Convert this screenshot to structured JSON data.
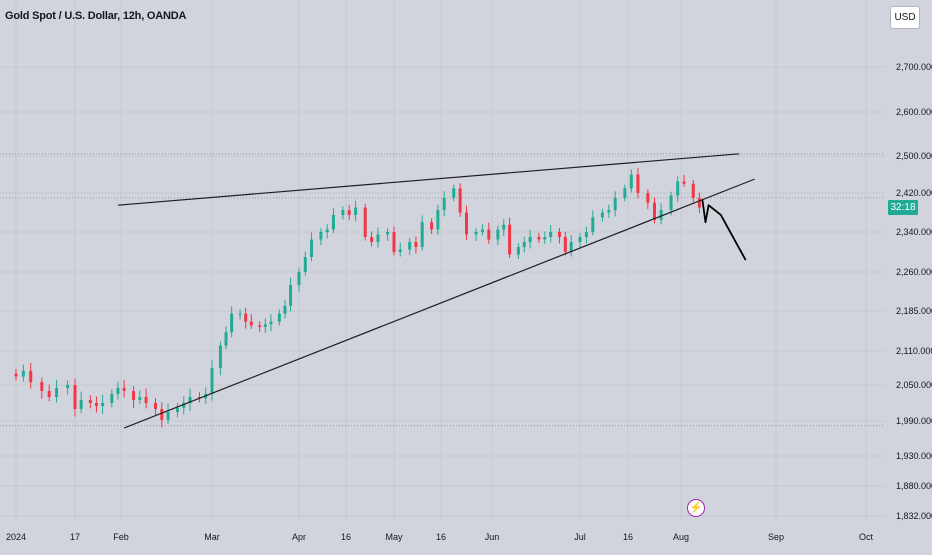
{
  "header": {
    "title": "Gold Spot / U.S. Dollar, 12h, OANDA",
    "currency_label": "USD",
    "countdown_label": "32:18"
  },
  "colors": {
    "background": "#d1d4dc",
    "up": "#22ab94",
    "down": "#f23645",
    "trendline": "#1e1e1e",
    "grid": "#c4c7ce",
    "axis_text": "#131722",
    "price_tag": "#22ab94",
    "alert_icon": "#9c27b0"
  },
  "icons": {
    "alert": "lightning-bolt-icon"
  },
  "chart_data": {
    "type": "candlestick",
    "title": "Gold Spot / U.S. Dollar, 12h, OANDA",
    "xlabel": "",
    "ylabel": "",
    "y_tick_labels": [
      "2,700.000",
      "2,600.000",
      "2,500.000",
      "2,420.000",
      "2,340.000",
      "2,260.000",
      "2,185.000",
      "2,110.000",
      "2,050.000",
      "1,990.000",
      "1,930.000",
      "1,880.000",
      "1,832.000"
    ],
    "x_tick_labels": [
      "2024",
      "17",
      "Feb",
      "Mar",
      "Apr",
      "16",
      "May",
      "16",
      "Jun",
      "Jul",
      "16",
      "Aug",
      "Sep",
      "Oct"
    ],
    "grid": true,
    "price_close_series": [
      [
        "2024-01-01",
        2065
      ],
      [
        "2024-01-03",
        2075
      ],
      [
        "2024-01-05",
        2055
      ],
      [
        "2024-01-08",
        2040
      ],
      [
        "2024-01-10",
        2030
      ],
      [
        "2024-01-12",
        2045
      ],
      [
        "2024-01-15",
        2050
      ],
      [
        "2024-01-17",
        2010
      ],
      [
        "2024-01-19",
        2025
      ],
      [
        "2024-01-22",
        2020
      ],
      [
        "2024-01-24",
        2015
      ],
      [
        "2024-01-26",
        2020
      ],
      [
        "2024-01-29",
        2035
      ],
      [
        "2024-01-31",
        2045
      ],
      [
        "2024-02-02",
        2040
      ],
      [
        "2024-02-05",
        2025
      ],
      [
        "2024-02-07",
        2030
      ],
      [
        "2024-02-09",
        2020
      ],
      [
        "2024-02-12",
        2010
      ],
      [
        "2024-02-14",
        1992
      ],
      [
        "2024-02-16",
        2005
      ],
      [
        "2024-02-19",
        2012
      ],
      [
        "2024-02-21",
        2020
      ],
      [
        "2024-02-23",
        2030
      ],
      [
        "2024-02-26",
        2028
      ],
      [
        "2024-02-28",
        2035
      ],
      [
        "2024-03-01",
        2080
      ],
      [
        "2024-03-04",
        2120
      ],
      [
        "2024-03-06",
        2145
      ],
      [
        "2024-03-08",
        2180
      ],
      [
        "2024-03-11",
        2180
      ],
      [
        "2024-03-13",
        2165
      ],
      [
        "2024-03-15",
        2158
      ],
      [
        "2024-03-18",
        2155
      ],
      [
        "2024-03-20",
        2160
      ],
      [
        "2024-03-22",
        2165
      ],
      [
        "2024-03-25",
        2180
      ],
      [
        "2024-03-27",
        2195
      ],
      [
        "2024-03-29",
        2235
      ],
      [
        "2024-04-01",
        2260
      ],
      [
        "2024-04-03",
        2290
      ],
      [
        "2024-04-05",
        2325
      ],
      [
        "2024-04-08",
        2340
      ],
      [
        "2024-04-10",
        2345
      ],
      [
        "2024-04-12",
        2375
      ],
      [
        "2024-04-15",
        2385
      ],
      [
        "2024-04-17",
        2375
      ],
      [
        "2024-04-19",
        2390
      ],
      [
        "2024-04-22",
        2330
      ],
      [
        "2024-04-24",
        2320
      ],
      [
        "2024-04-26",
        2335
      ],
      [
        "2024-04-29",
        2340
      ],
      [
        "2024-05-01",
        2300
      ],
      [
        "2024-05-03",
        2305
      ],
      [
        "2024-05-06",
        2320
      ],
      [
        "2024-05-08",
        2310
      ],
      [
        "2024-05-10",
        2360
      ],
      [
        "2024-05-13",
        2345
      ],
      [
        "2024-05-15",
        2385
      ],
      [
        "2024-05-17",
        2410
      ],
      [
        "2024-05-20",
        2430
      ],
      [
        "2024-05-22",
        2380
      ],
      [
        "2024-05-24",
        2335
      ],
      [
        "2024-05-27",
        2340
      ],
      [
        "2024-05-29",
        2345
      ],
      [
        "2024-05-31",
        2325
      ],
      [
        "2024-06-03",
        2345
      ],
      [
        "2024-06-05",
        2355
      ],
      [
        "2024-06-07",
        2295
      ],
      [
        "2024-06-10",
        2310
      ],
      [
        "2024-06-12",
        2320
      ],
      [
        "2024-06-14",
        2330
      ],
      [
        "2024-06-17",
        2325
      ],
      [
        "2024-06-19",
        2330
      ],
      [
        "2024-06-21",
        2340
      ],
      [
        "2024-06-24",
        2330
      ],
      [
        "2024-06-26",
        2300
      ],
      [
        "2024-06-28",
        2320
      ],
      [
        "2024-07-01",
        2330
      ],
      [
        "2024-07-03",
        2340
      ],
      [
        "2024-07-05",
        2370
      ],
      [
        "2024-07-08",
        2380
      ],
      [
        "2024-07-10",
        2385
      ],
      [
        "2024-07-12",
        2410
      ],
      [
        "2024-07-15",
        2430
      ],
      [
        "2024-07-17",
        2460
      ],
      [
        "2024-07-19",
        2420
      ],
      [
        "2024-07-22",
        2400
      ],
      [
        "2024-07-24",
        2365
      ],
      [
        "2024-07-26",
        2385
      ],
      [
        "2024-07-29",
        2415
      ],
      [
        "2024-07-31",
        2445
      ],
      [
        "2024-08-02",
        2440
      ],
      [
        "2024-08-05",
        2410
      ],
      [
        "2024-08-07",
        2390
      ]
    ],
    "ylim": [
      1832,
      2700
    ],
    "xlim": [
      "2023-12-28",
      "2024-10-01"
    ],
    "annotations": {
      "upper_trendline": [
        [
          "2024-01-31",
          2395
        ],
        [
          "2024-08-20",
          2505
        ]
      ],
      "lower_trendline": [
        [
          "2024-02-02",
          1978
        ],
        [
          "2024-08-25",
          2450
        ]
      ],
      "horizontal_levels": [
        2505,
        2410,
        1982
      ],
      "projection_path": [
        [
          "2024-08-08",
          2405
        ],
        [
          "2024-08-09",
          2360
        ],
        [
          "2024-08-10",
          2395
        ],
        [
          "2024-08-14",
          2375
        ],
        [
          "2024-08-22",
          2285
        ]
      ]
    }
  }
}
